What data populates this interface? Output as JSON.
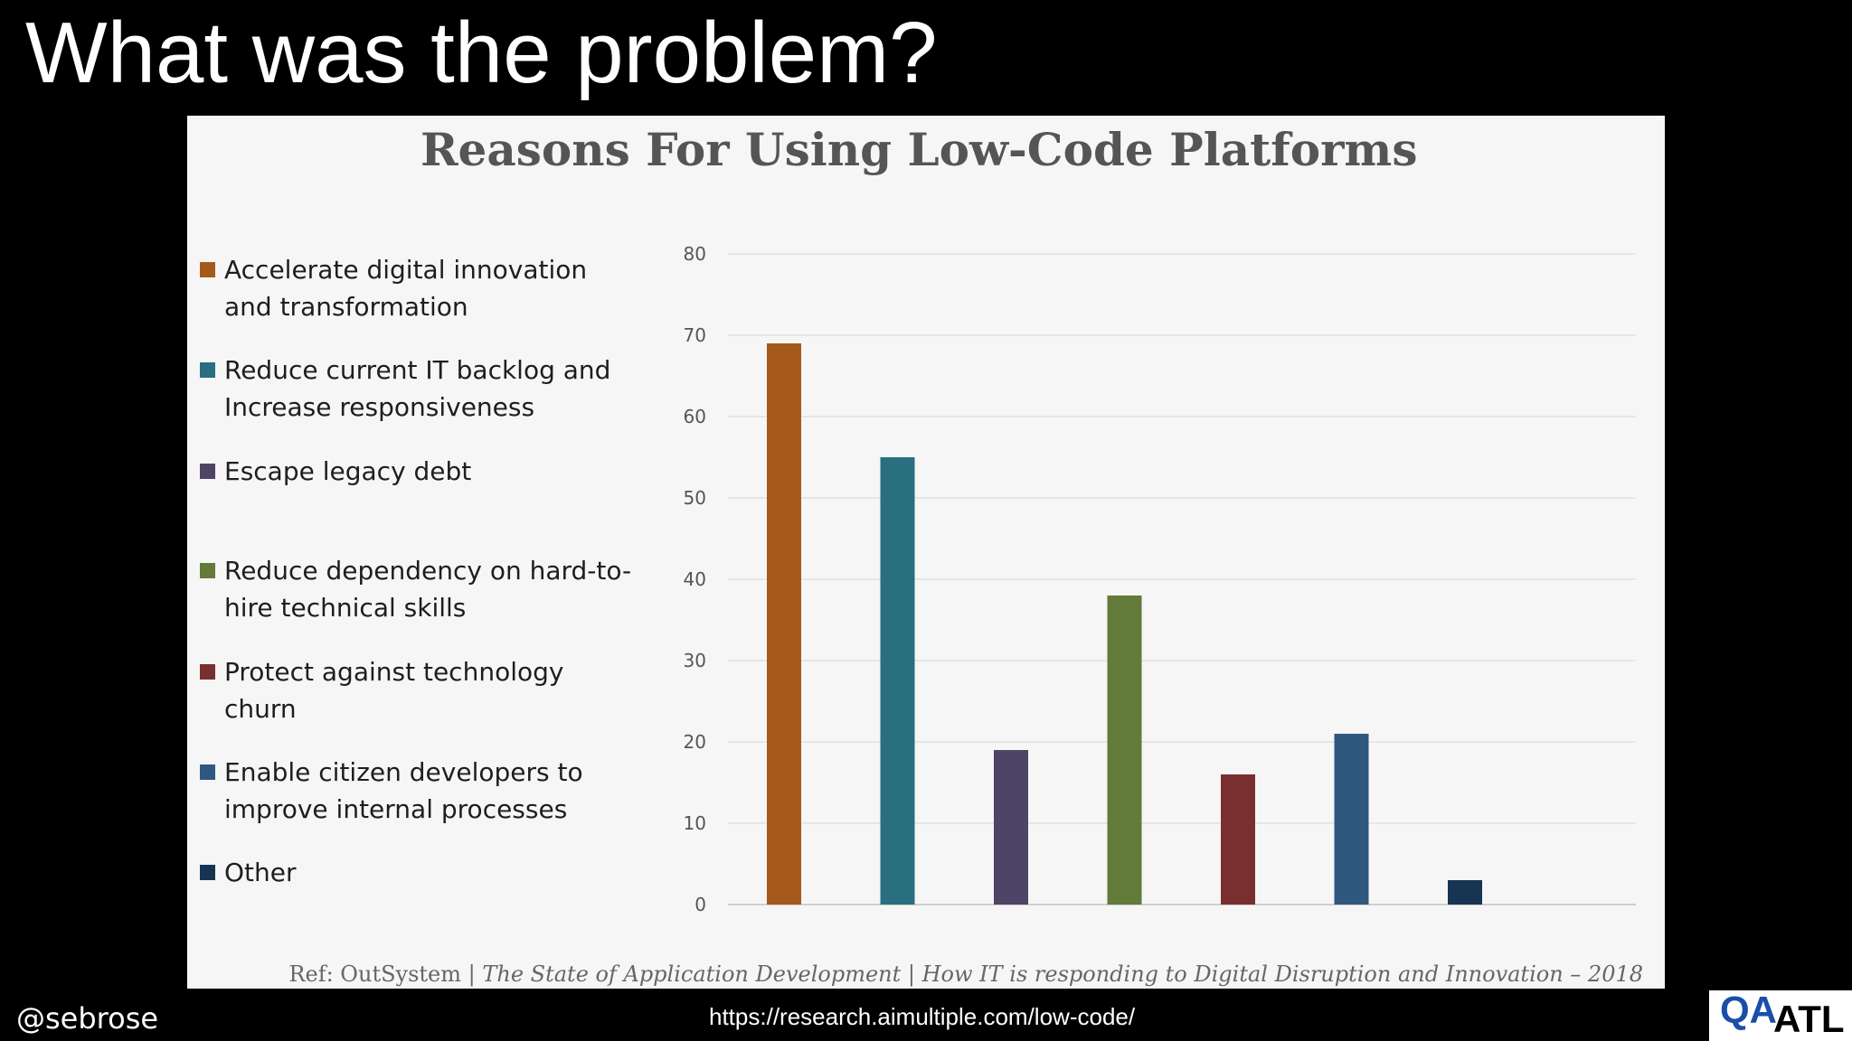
{
  "slide": {
    "title": "What was the problem?",
    "handle": "@sebrose",
    "url": "https://research.aimultiple.com/low-code/"
  },
  "logo": {
    "qa": "QA",
    "atl": "ATL"
  },
  "colors": {
    "background": "#000000",
    "panel": "#f6f6f6",
    "grid": "#e0e0e0"
  },
  "chart_data": {
    "type": "bar",
    "title": "Reasons For Using Low-Code Platforms",
    "xlabel": "",
    "ylabel": "",
    "ylim": [
      0,
      80
    ],
    "yticks": [
      0,
      10,
      20,
      30,
      40,
      50,
      60,
      70,
      80
    ],
    "grid": true,
    "legend_position": "left",
    "categories": [
      "Accelerate digital innovation and transformation",
      "Reduce current IT backlog and Increase responsiveness",
      "Escape legacy debt",
      "Reduce dependency on hard-to-hire technical skills",
      "Protect against technology churn",
      "Enable citizen developers to improve internal processes",
      "Other"
    ],
    "values": [
      69,
      55,
      19,
      38,
      16,
      21,
      3
    ],
    "colors": [
      "#a55a1c",
      "#2a6f7f",
      "#4e4466",
      "#627a3a",
      "#7a2f2f",
      "#2e5880",
      "#173552"
    ]
  },
  "reference": {
    "prefix": "Ref: OutSystem | ",
    "publication": "The State of Application Development | How IT is responding to Digital Disruption and Innovation – 2018"
  }
}
